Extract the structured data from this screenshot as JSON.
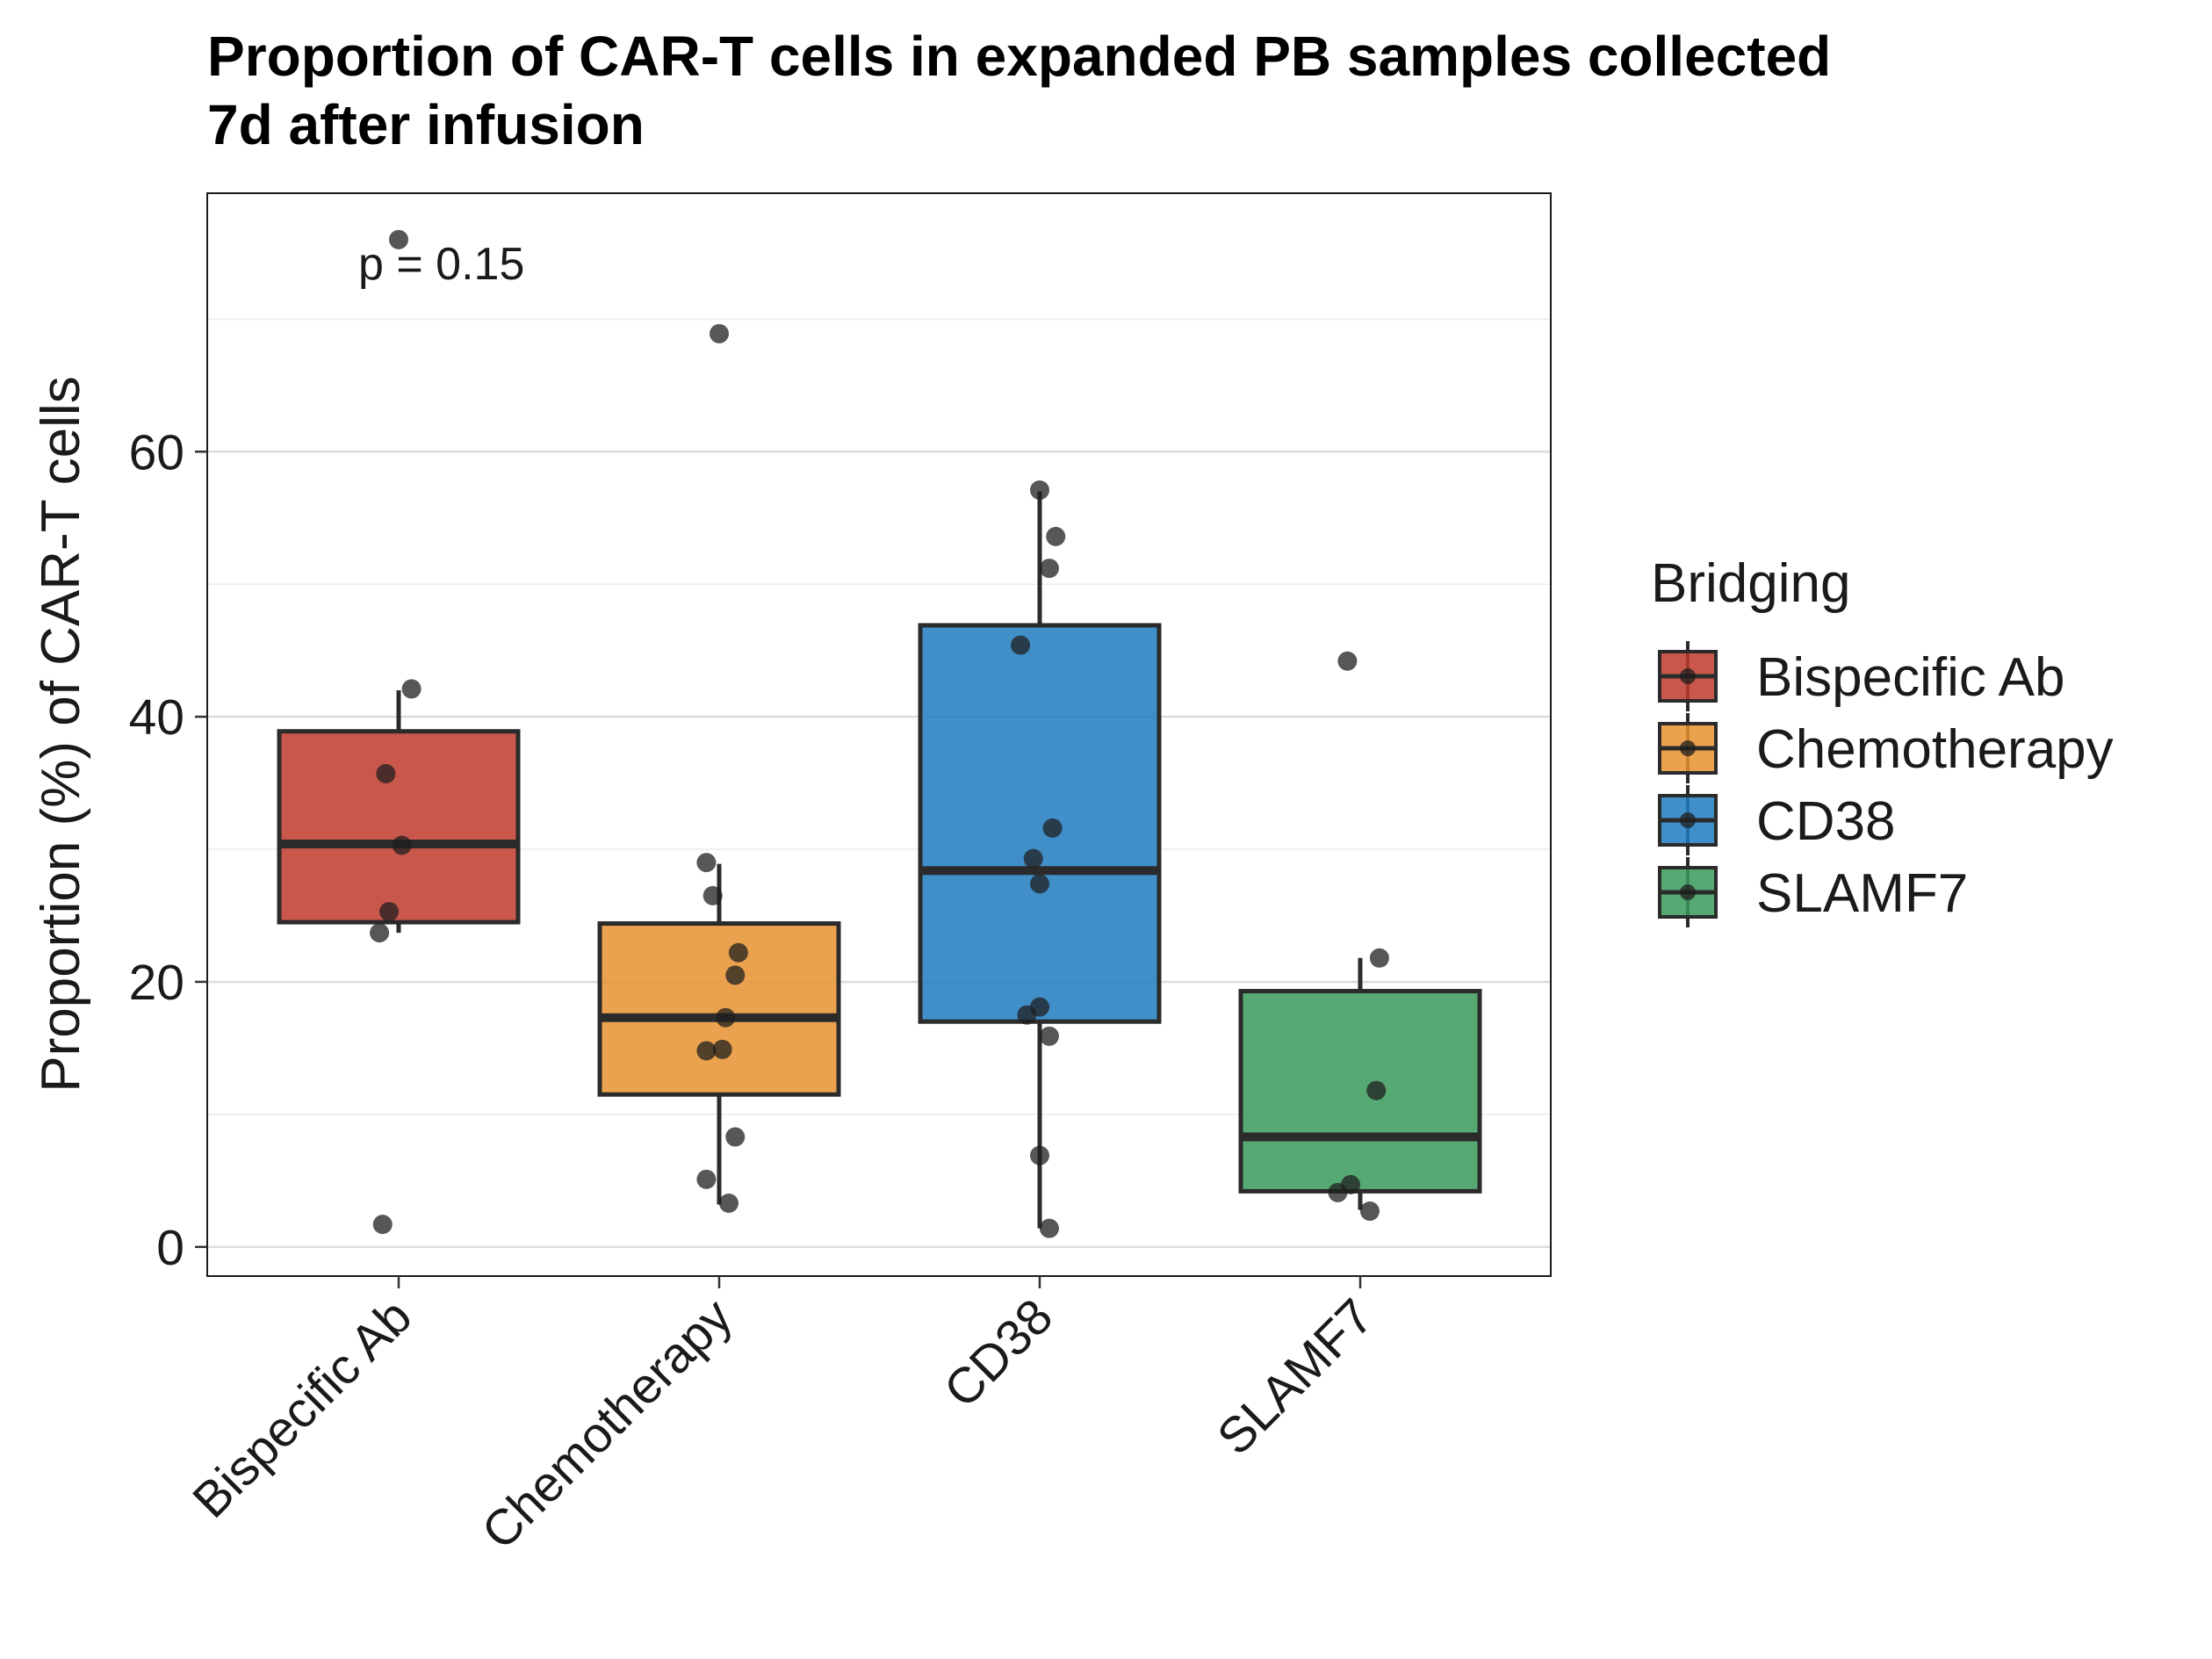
{
  "chart_data": {
    "type": "boxplot",
    "title": "Proportion of CAR-T cells in expanded PB samples collected 7d after infusion",
    "title_lines": [
      "Proportion of CAR-T cells in expanded PB samples collected",
      "7d after infusion"
    ],
    "ylabel": "Proportion (%) of CAR-T cells",
    "xlabel": "",
    "ylim": [
      -2.2,
      79.5
    ],
    "yticks": [
      0,
      20,
      40,
      60
    ],
    "minor_gridlines": [
      10,
      30,
      50,
      70
    ],
    "grid": true,
    "annotation": "p = 0.15",
    "legend": {
      "title": "Bridging",
      "position": "right"
    },
    "categories": [
      "Bispecific Ab",
      "Chemotherapy",
      "CD38",
      "SLAMF7"
    ],
    "series": [
      {
        "name": "Bispecific Ab",
        "color": "#c0392b",
        "box": {
          "whisker_low": 23.7,
          "q1": 24.5,
          "median": 30.4,
          "q3": 38.9,
          "whisker_high": 42.0
        },
        "points": [
          {
            "x": 0.0,
            "y": 76.0
          },
          {
            "x": 0.04,
            "y": 42.1
          },
          {
            "x": -0.04,
            "y": 35.7
          },
          {
            "x": 0.01,
            "y": 30.3
          },
          {
            "x": -0.03,
            "y": 25.3
          },
          {
            "x": -0.06,
            "y": 23.7
          },
          {
            "x": -0.05,
            "y": 1.7
          }
        ]
      },
      {
        "name": "Chemotherapy",
        "color": "#e8922f",
        "box": {
          "whisker_low": 3.2,
          "q1": 11.5,
          "median": 17.3,
          "q3": 24.4,
          "whisker_high": 28.9
        },
        "points": [
          {
            "x": 0.0,
            "y": 68.9
          },
          {
            "x": -0.04,
            "y": 29.0
          },
          {
            "x": -0.02,
            "y": 26.5
          },
          {
            "x": 0.06,
            "y": 22.2
          },
          {
            "x": 0.05,
            "y": 20.5
          },
          {
            "x": 0.02,
            "y": 17.3
          },
          {
            "x": -0.04,
            "y": 14.8
          },
          {
            "x": 0.01,
            "y": 14.9
          },
          {
            "x": 0.05,
            "y": 8.3
          },
          {
            "x": -0.04,
            "y": 5.1
          },
          {
            "x": 0.03,
            "y": 3.3
          }
        ]
      },
      {
        "name": "CD38",
        "color": "#1f7bbf",
        "box": {
          "whisker_low": 1.4,
          "q1": 17.0,
          "median": 28.4,
          "q3": 46.9,
          "whisker_high": 57.0
        },
        "points": [
          {
            "x": 0.0,
            "y": 57.1
          },
          {
            "x": 0.05,
            "y": 53.6
          },
          {
            "x": 0.03,
            "y": 51.2
          },
          {
            "x": -0.06,
            "y": 45.4
          },
          {
            "x": 0.04,
            "y": 31.6
          },
          {
            "x": -0.02,
            "y": 29.3
          },
          {
            "x": 0.0,
            "y": 27.4
          },
          {
            "x": 0.0,
            "y": 18.1
          },
          {
            "x": -0.04,
            "y": 17.5
          },
          {
            "x": 0.03,
            "y": 15.9
          },
          {
            "x": 0.0,
            "y": 6.9
          },
          {
            "x": 0.03,
            "y": 1.4
          }
        ]
      },
      {
        "name": "SLAMF7",
        "color": "#3a9a5b",
        "box": {
          "whisker_low": 2.8,
          "q1": 4.2,
          "median": 8.3,
          "q3": 19.3,
          "whisker_high": 21.8
        },
        "points": [
          {
            "x": -0.04,
            "y": 44.2
          },
          {
            "x": 0.06,
            "y": 21.8
          },
          {
            "x": 0.05,
            "y": 11.8
          },
          {
            "x": -0.03,
            "y": 4.7
          },
          {
            "x": -0.07,
            "y": 4.1
          },
          {
            "x": 0.03,
            "y": 2.7
          }
        ]
      }
    ]
  }
}
